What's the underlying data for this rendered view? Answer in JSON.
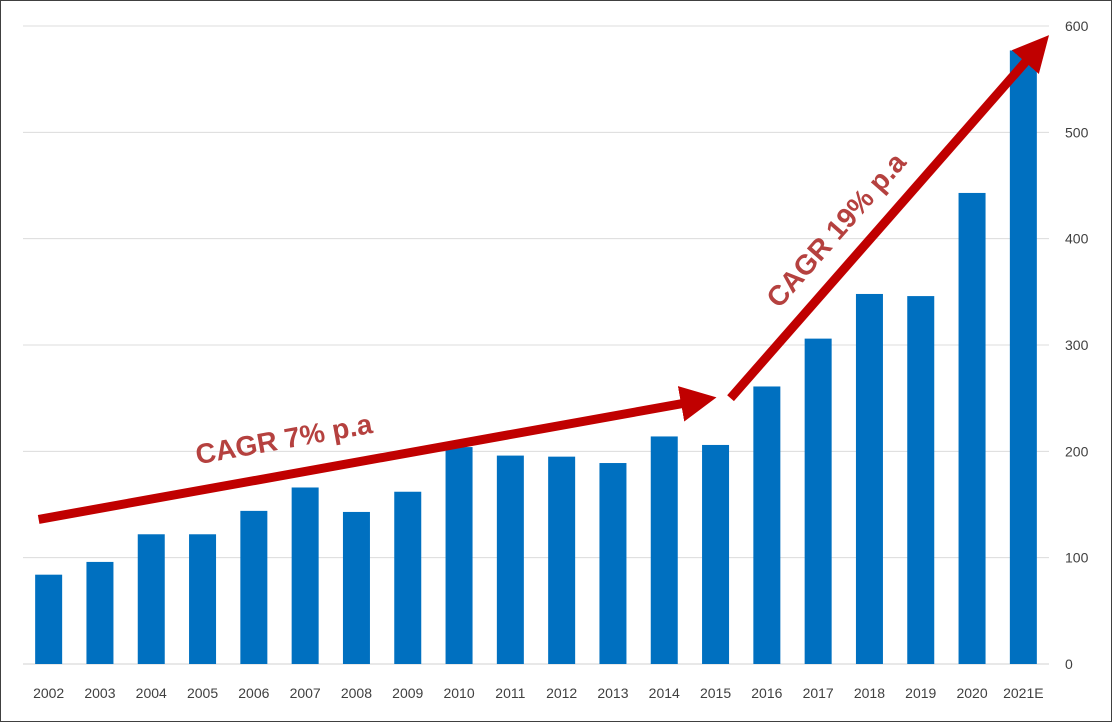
{
  "chart_data": {
    "type": "bar",
    "categories": [
      "2002",
      "2003",
      "2004",
      "2005",
      "2006",
      "2007",
      "2008",
      "2009",
      "2010",
      "2011",
      "2012",
      "2013",
      "2014",
      "2015",
      "2016",
      "2017",
      "2018",
      "2019",
      "2020",
      "2021E"
    ],
    "values": [
      84,
      96,
      122,
      122,
      144,
      166,
      143,
      162,
      204,
      196,
      195,
      189,
      214,
      206,
      261,
      306,
      348,
      346,
      443,
      577
    ],
    "title": "",
    "xlabel": "",
    "ylabel": "",
    "ylim": [
      0,
      600
    ],
    "yticks": [
      0,
      100,
      200,
      300,
      400,
      500,
      600
    ],
    "y_axis_position": "right",
    "grid": true,
    "bar_color": "#0070c0",
    "arrow_color": "#c00000",
    "annotation_color": "#b5413f",
    "annotations": [
      {
        "text": "CAGR 7% p.a",
        "from_category": "2002",
        "to_category": "2015",
        "y_start": 136,
        "y_end": 248
      },
      {
        "text": "CAGR 19% p.a",
        "from_category": "2015",
        "to_category": "2021E",
        "y_start": 250,
        "y_end": 580
      }
    ]
  }
}
